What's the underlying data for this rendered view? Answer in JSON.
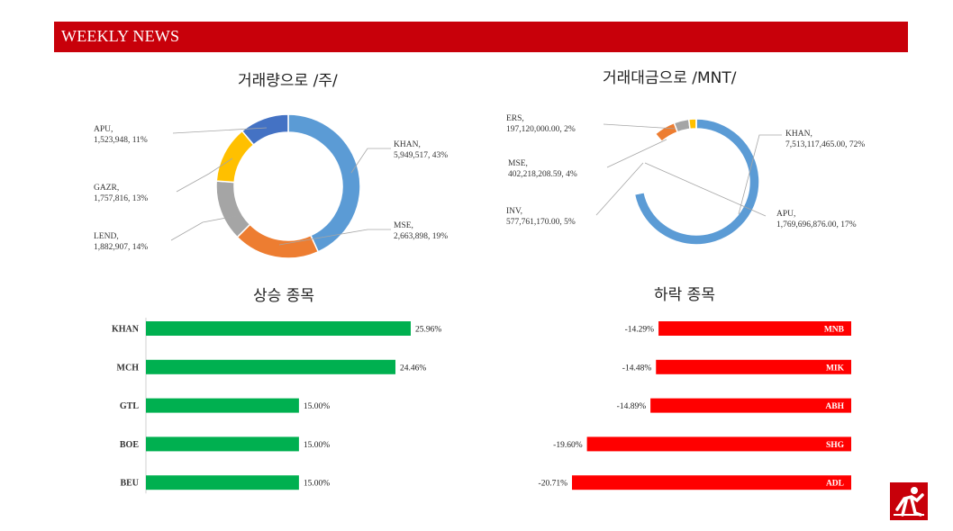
{
  "header": {
    "title": "WEEKLY NEWS"
  },
  "chart_data": [
    {
      "type": "pie",
      "title": "거래량으로 /주/",
      "slices": [
        {
          "label": "KHAN",
          "value": 5949517,
          "percent": 43,
          "text": "KHAN,\n5,949,517, 43%",
          "color": "#5b9bd5"
        },
        {
          "label": "MSE",
          "value": 2663898,
          "percent": 19,
          "text": "MSE,\n2,663,898, 19%",
          "color": "#ed7d31"
        },
        {
          "label": "LEND",
          "value": 1882907,
          "percent": 14,
          "text": "LEND,\n1,882,907, 14%",
          "color": "#a5a5a5"
        },
        {
          "label": "GAZR",
          "value": 1757816,
          "percent": 13,
          "text": "GAZR,\n1,757,816, 13%",
          "color": "#ffc000"
        },
        {
          "label": "APU",
          "value": 1523948,
          "percent": 11,
          "text": "APU,\n1,523,948, 11%",
          "color": "#4472c4"
        }
      ]
    },
    {
      "type": "pie",
      "title": "거래대금으로 /MNT/",
      "slices": [
        {
          "label": "KHAN",
          "value": 7513117465.0,
          "percent": 72,
          "text": "KHAN,\n7,513,117,465.00, 72%",
          "color": "#5b9bd5"
        },
        {
          "label": "APU",
          "value": 1769696876.0,
          "percent": 17,
          "text": "APU,\n1,769,696,876.00, 17%",
          "color": "#ffffff"
        },
        {
          "label": "INV",
          "value": 577761170.0,
          "percent": 5,
          "text": "INV,\n577,761,170.00, 5%",
          "color": "#ed7d31"
        },
        {
          "label": "MSE",
          "value": 402218208.59,
          "percent": 4,
          "text": "MSE,\n402,218,208.59, 4%",
          "color": "#a5a5a5"
        },
        {
          "label": "ERS",
          "value": 197120000.0,
          "percent": 2,
          "text": "ERS,\n197,120,000.00, 2%",
          "color": "#ffc000"
        },
        {
          "label": "",
          "value": 1,
          "percent": 1,
          "text": "",
          "color": "#4472c4"
        }
      ]
    },
    {
      "type": "bar",
      "title": "상승 종목",
      "categories": [
        "KHAN",
        "MCH",
        "GTL",
        "BOE",
        "BEU"
      ],
      "values": [
        25.96,
        24.46,
        15.0,
        15.0,
        15.0
      ],
      "labels": [
        "25.96%",
        "24.46%",
        "15.00%",
        "15.00%",
        "15.00%"
      ],
      "color": "#00b050"
    },
    {
      "type": "bar",
      "title": "하락 종목",
      "categories": [
        "MNB",
        "MIK",
        "ABH",
        "SHG",
        "ADL"
      ],
      "values": [
        -14.29,
        -14.48,
        -14.89,
        -19.6,
        -20.71
      ],
      "labels": [
        "-14.29%",
        "-14.48%",
        "-14.89%",
        "-19.60%",
        "-20.71%"
      ],
      "color": "#ff0000"
    }
  ]
}
